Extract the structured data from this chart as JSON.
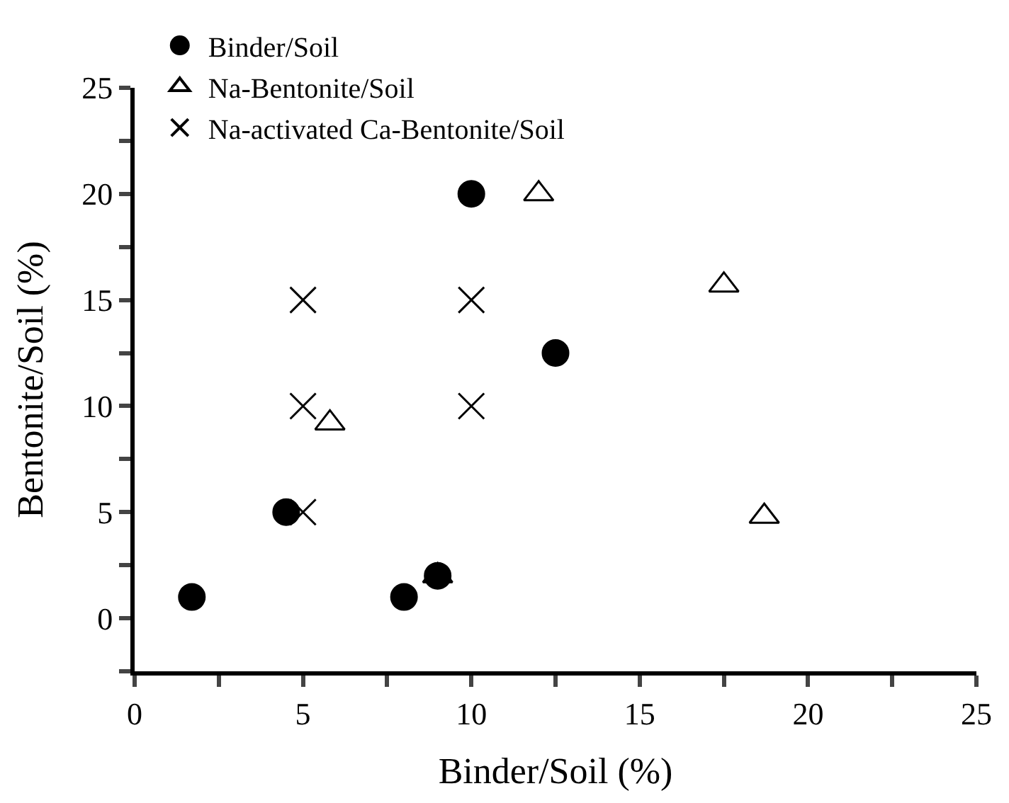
{
  "chart_data": {
    "type": "scatter",
    "xlabel": "Binder/Soil (%)",
    "ylabel": "Bentonite/Soil (%)",
    "xlim": [
      0,
      25
    ],
    "ylim": [
      -2.5,
      25
    ],
    "xticks": [
      0,
      {
        "value": 2.5,
        "label": null
      },
      5,
      {
        "value": 7.5,
        "label": null
      },
      10,
      {
        "value": 12.5,
        "label": null
      },
      15,
      {
        "value": 17.5,
        "label": null
      },
      20,
      {
        "value": 22.5,
        "label": null
      },
      25
    ],
    "yticks": [
      {
        "value": -2.5,
        "label": null
      },
      0,
      {
        "value": 2.5,
        "label": null
      },
      5,
      {
        "value": 7.5,
        "label": null
      },
      10,
      {
        "value": 12.5,
        "label": null
      },
      15,
      {
        "value": 17.5,
        "label": null
      },
      20,
      {
        "value": 22.5,
        "label": null
      },
      25
    ],
    "grid": false,
    "legend": "top left",
    "series": [
      {
        "name": "Binder/Soil",
        "color": "#000000",
        "marker": "circle",
        "x": [
          1.7,
          4.5,
          8,
          9,
          10,
          12.5
        ],
        "values": [
          1,
          5,
          1,
          2,
          20,
          12.5
        ]
      },
      {
        "name": "Na-Bentonite/Soil",
        "color": "#000000",
        "marker": "triangle",
        "x": [
          5.8,
          9,
          12,
          17.5,
          18.7
        ],
        "values": [
          9.2,
          2,
          20,
          15.7,
          4.8
        ]
      },
      {
        "name": "Na-activated Ca-Bentonite/Soil",
        "color": "#000000",
        "marker": "cross",
        "x": [
          5,
          5,
          5,
          10,
          10
        ],
        "values": [
          5,
          10,
          15,
          10,
          15
        ]
      }
    ]
  }
}
